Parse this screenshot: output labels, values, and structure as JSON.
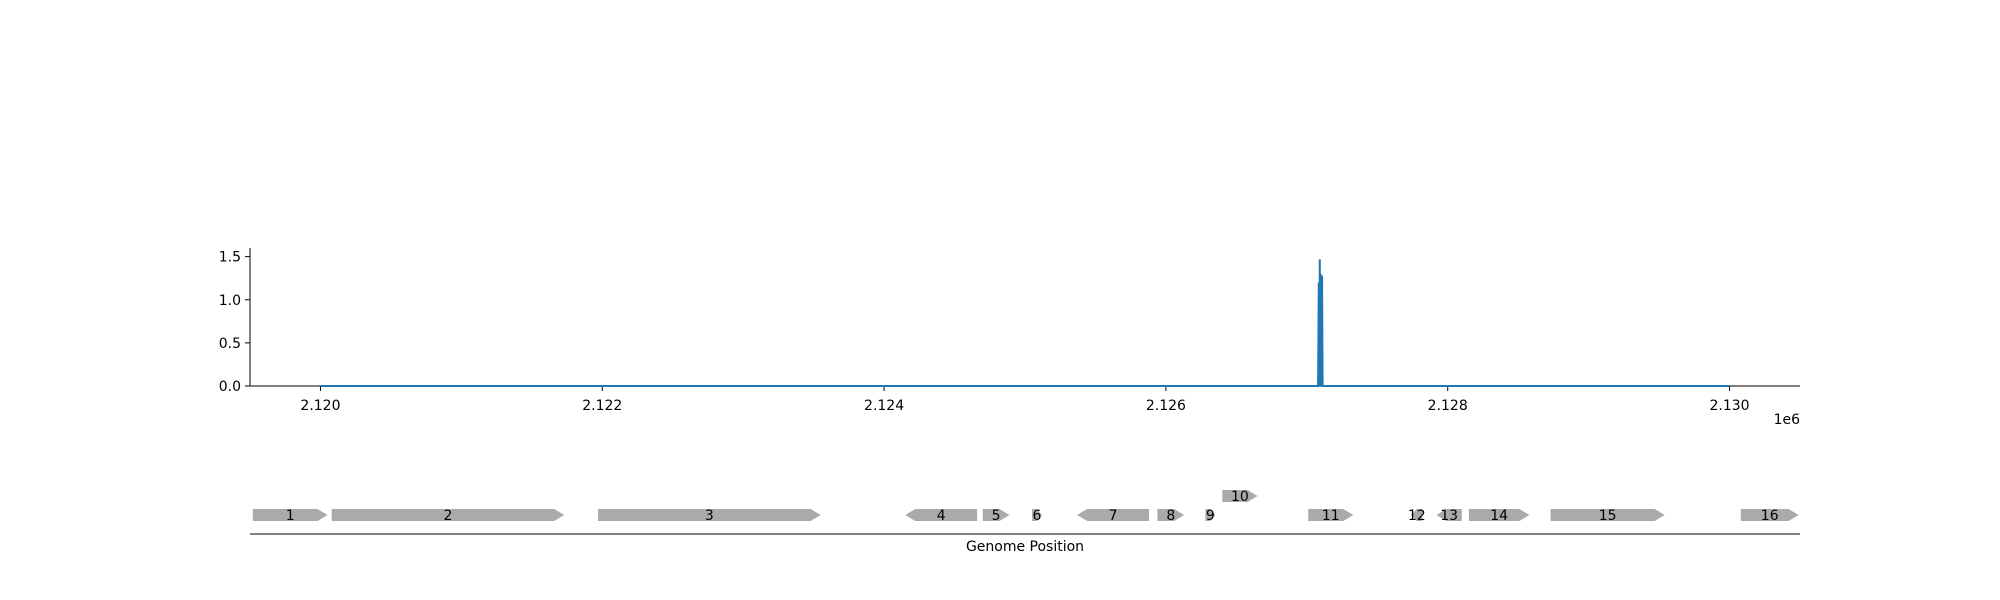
{
  "chart_data": [
    {
      "type": "line",
      "title": "",
      "xlabel": "",
      "ylabel": "",
      "x_offset_label": "1e6",
      "xlim": [
        2119500,
        2130500
      ],
      "ylim": [
        0,
        1.6
      ],
      "x_ticks": [
        2120000,
        2122000,
        2124000,
        2126000,
        2128000,
        2130000
      ],
      "x_tick_labels": [
        "2.120",
        "2.122",
        "2.124",
        "2.126",
        "2.128",
        "2.130"
      ],
      "y_ticks": [
        0,
        0.5,
        1.0,
        1.5
      ],
      "y_tick_labels": [
        "0.0",
        "0.5",
        "1.0",
        "1.5"
      ],
      "grid": false,
      "color": "#1f77b4",
      "series": [
        {
          "x": [
            2120000,
            2127080,
            2127085,
            2127090,
            2127092,
            2127095,
            2127098,
            2127100,
            2127102,
            2127105,
            2127108,
            2127112,
            2130000
          ],
          "values": [
            0,
            0,
            1.2,
            0,
            1.47,
            0,
            1.3,
            0,
            1.25,
            0,
            1.28,
            0,
            0
          ]
        }
      ]
    },
    {
      "type": "gene-track",
      "xlabel": "Genome Position",
      "color": "#aaaaaa",
      "genes": [
        {
          "label": "1",
          "start": 2119520,
          "end": 2120050,
          "strand": "+",
          "row": 0
        },
        {
          "label": "2",
          "start": 2120080,
          "end": 2121730,
          "strand": "+",
          "row": 0
        },
        {
          "label": "3",
          "start": 2121970,
          "end": 2123550,
          "strand": "+",
          "row": 0
        },
        {
          "label": "4",
          "start": 2124150,
          "end": 2124660,
          "strand": "-",
          "row": 0
        },
        {
          "label": "5",
          "start": 2124700,
          "end": 2124890,
          "strand": "+",
          "row": 0
        },
        {
          "label": "6",
          "start": 2125050,
          "end": 2125120,
          "strand": "+",
          "row": 0
        },
        {
          "label": "7",
          "start": 2125370,
          "end": 2125880,
          "strand": "-",
          "row": 0
        },
        {
          "label": "8",
          "start": 2125940,
          "end": 2126130,
          "strand": "+",
          "row": 0
        },
        {
          "label": "9",
          "start": 2126280,
          "end": 2126350,
          "strand": "+",
          "row": 0
        },
        {
          "label": "10",
          "start": 2126400,
          "end": 2126650,
          "strand": "+",
          "row": 1
        },
        {
          "label": "11",
          "start": 2127010,
          "end": 2127330,
          "strand": "+",
          "row": 0
        },
        {
          "label": "12",
          "start": 2127740,
          "end": 2127820,
          "strand": "-",
          "row": 0
        },
        {
          "label": "13",
          "start": 2127920,
          "end": 2128100,
          "strand": "-",
          "row": 0
        },
        {
          "label": "14",
          "start": 2128150,
          "end": 2128580,
          "strand": "+",
          "row": 0
        },
        {
          "label": "15",
          "start": 2128730,
          "end": 2129540,
          "strand": "+",
          "row": 0
        },
        {
          "label": "16",
          "start": 2130080,
          "end": 2130490,
          "strand": "+",
          "row": 0
        }
      ]
    }
  ]
}
